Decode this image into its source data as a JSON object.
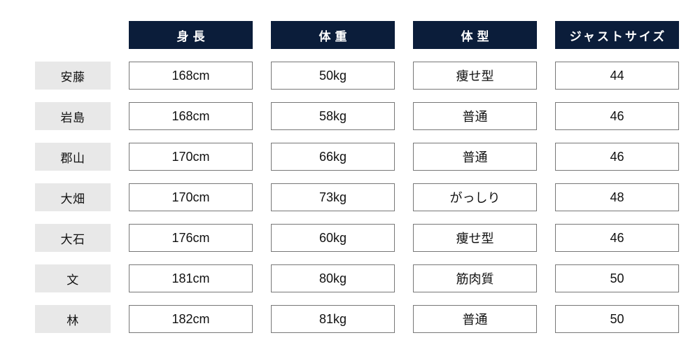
{
  "table": {
    "type": "table",
    "background_color": "#ffffff",
    "header_bg": "#0b1d3a",
    "header_fg": "#ffffff",
    "row_header_bg": "#e8e8e8",
    "cell_border_color": "#777777",
    "font_size_header": 17,
    "font_size_cell": 18,
    "columns": [
      {
        "key": "height",
        "label": "身長"
      },
      {
        "key": "weight",
        "label": "体重"
      },
      {
        "key": "body_type",
        "label": "体型"
      },
      {
        "key": "just_size",
        "label": "ジャストサイズ"
      }
    ],
    "rows": [
      {
        "name": "安藤",
        "height": "168cm",
        "weight": "50kg",
        "body_type": "痩せ型",
        "just_size": "44"
      },
      {
        "name": "岩島",
        "height": "168cm",
        "weight": "58kg",
        "body_type": "普通",
        "just_size": "46"
      },
      {
        "name": "郡山",
        "height": "170cm",
        "weight": "66kg",
        "body_type": "普通",
        "just_size": "46"
      },
      {
        "name": "大畑",
        "height": "170cm",
        "weight": "73kg",
        "body_type": "がっしり",
        "just_size": "48"
      },
      {
        "name": "大石",
        "height": "176cm",
        "weight": "60kg",
        "body_type": "痩せ型",
        "just_size": "46"
      },
      {
        "name": "文",
        "height": "181cm",
        "weight": "80kg",
        "body_type": "筋肉質",
        "just_size": "50"
      },
      {
        "name": "林",
        "height": "182cm",
        "weight": "81kg",
        "body_type": "普通",
        "just_size": "50"
      }
    ]
  }
}
